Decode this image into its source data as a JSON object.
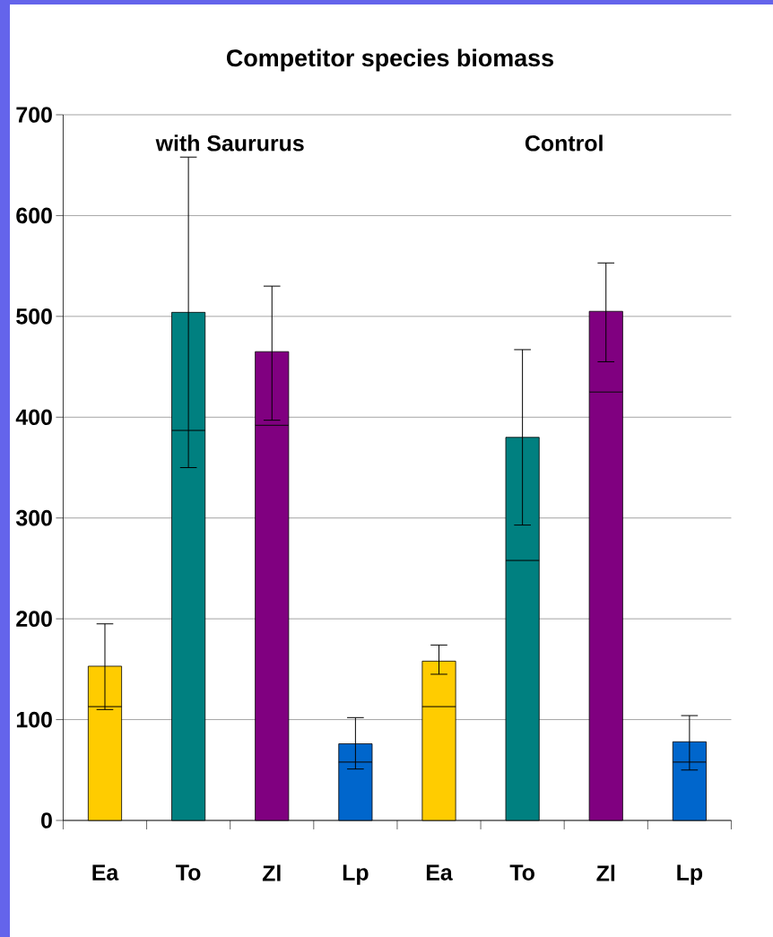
{
  "chart_data": {
    "type": "bar",
    "title": "Competitor species biomass",
    "stacked": true,
    "categories": [
      "Ea",
      "To",
      "Zl",
      "Lp",
      "Ea",
      "To",
      "Zl",
      "Lp"
    ],
    "series": [
      {
        "values": [
          113,
          387,
          392,
          58,
          113,
          258,
          425,
          58
        ],
        "colors": [
          "#ffcc00",
          "#008080",
          "#800080",
          "#0066cc",
          "#ffcc00",
          "#008080",
          "#800080",
          "#0066cc"
        ]
      },
      {
        "values": [
          40,
          117,
          73,
          18,
          45,
          122,
          80,
          20
        ],
        "colors": [
          "#ffcc00",
          "#008080",
          "#800080",
          "#0066cc",
          "#ffcc00",
          "#008080",
          "#800080",
          "#0066cc"
        ],
        "errors": [
          [
            110,
            195
          ],
          [
            350,
            658
          ],
          [
            397,
            530
          ],
          [
            51,
            102
          ],
          [
            145,
            174
          ],
          [
            293,
            467
          ],
          [
            455,
            553
          ],
          [
            50,
            104
          ]
        ]
      }
    ],
    "ylim": [
      0,
      700
    ],
    "yticks": [
      0,
      100,
      200,
      300,
      400,
      500,
      600,
      700
    ],
    "grid": "y",
    "annotations": [
      "with Saururus",
      "Control"
    ]
  }
}
